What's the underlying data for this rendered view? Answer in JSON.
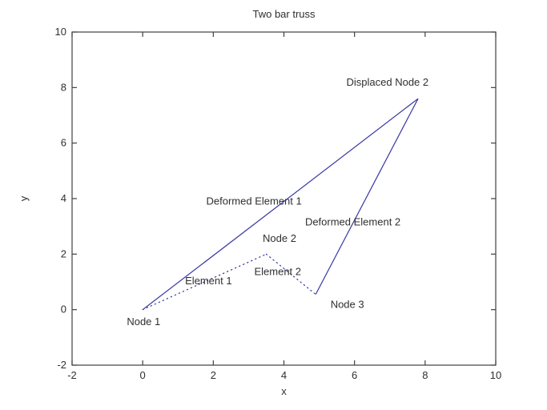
{
  "chart_data": {
    "type": "line",
    "title": "Two bar truss",
    "xlabel": "x",
    "ylabel": "y",
    "xlim": [
      -2,
      10
    ],
    "ylim": [
      -2,
      10
    ],
    "xticks": [
      -2,
      0,
      2,
      4,
      6,
      8,
      10
    ],
    "yticks": [
      -2,
      0,
      2,
      4,
      6,
      8,
      10
    ],
    "grid": false,
    "legend": "none",
    "colors": {
      "line": "#3737a3",
      "axis": "#3f3f3f",
      "text": "#2f2f2f",
      "background": "#ffffff"
    },
    "nodes": {
      "node1": [
        0,
        0
      ],
      "node2": [
        3.5,
        2
      ],
      "node3": [
        4.9,
        0.55
      ],
      "displaced_node2": [
        7.8,
        7.6
      ]
    },
    "series": [
      {
        "name": "Element 1",
        "style": "dotted",
        "points": [
          [
            0,
            0
          ],
          [
            3.5,
            2
          ]
        ]
      },
      {
        "name": "Element 2",
        "style": "dotted",
        "points": [
          [
            3.5,
            2
          ],
          [
            4.9,
            0.55
          ]
        ]
      },
      {
        "name": "Deformed Element 1",
        "style": "solid",
        "points": [
          [
            0,
            0
          ],
          [
            7.8,
            7.6
          ]
        ]
      },
      {
        "name": "Deformed Element 2",
        "style": "solid",
        "points": [
          [
            7.8,
            7.6
          ],
          [
            4.9,
            0.55
          ]
        ]
      }
    ],
    "annotations": [
      {
        "text": "Node 1",
        "x": -0.45,
        "y": -0.43
      },
      {
        "text": "Node 2",
        "x": 3.4,
        "y": 2.57
      },
      {
        "text": "Node 3",
        "x": 5.32,
        "y": 0.2
      },
      {
        "text": "Element 1",
        "x": 1.2,
        "y": 1.04
      },
      {
        "text": "Element 2",
        "x": 3.16,
        "y": 1.38
      },
      {
        "text": "Deformed Element 1",
        "x": 1.8,
        "y": 3.92
      },
      {
        "text": "Deformed Element 2",
        "x": 4.6,
        "y": 3.17
      },
      {
        "text": "Displaced Node 2",
        "x": 5.77,
        "y": 8.2
      }
    ]
  }
}
